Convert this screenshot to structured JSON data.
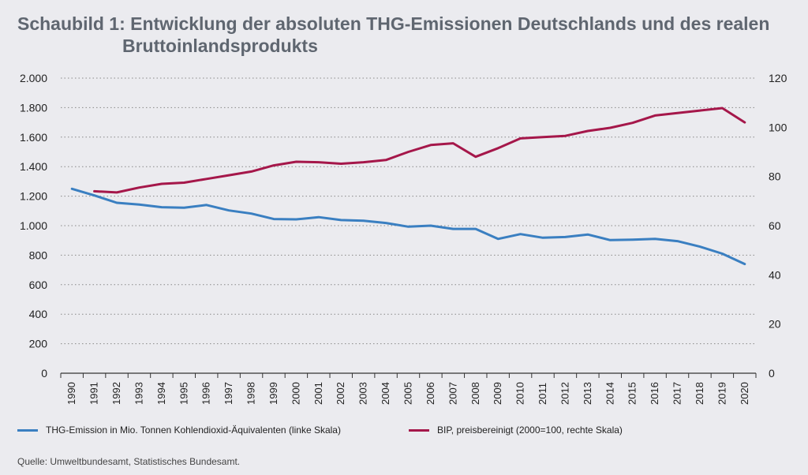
{
  "title_line1": "Schaubild 1: Entwicklung der absoluten THG-Emissionen Deutschlands und des realen",
  "title_line2": "Bruttoinlandsprodukts",
  "source": "Quelle: Umweltbundesamt, Statistisches Bundesamt.",
  "colors": {
    "emissions": "#3a7fc1",
    "gdp": "#a5174a",
    "grid": "#888888",
    "background": "#ebebef"
  },
  "chart_data": {
    "type": "line",
    "x": [
      1990,
      1991,
      1992,
      1993,
      1994,
      1995,
      1996,
      1997,
      1998,
      1999,
      2000,
      2001,
      2002,
      2003,
      2004,
      2005,
      2006,
      2007,
      2008,
      2009,
      2010,
      2011,
      2012,
      2013,
      2014,
      2015,
      2016,
      2017,
      2018,
      2019,
      2020
    ],
    "y_left": {
      "range": [
        0,
        2000
      ],
      "ticks": [
        "0",
        "200",
        "400",
        "600",
        "800",
        "1.000",
        "1.200",
        "1.400",
        "1.600",
        "1.800",
        "2.000"
      ],
      "tick_values": [
        0,
        200,
        400,
        600,
        800,
        1000,
        1200,
        1400,
        1600,
        1800,
        2000
      ]
    },
    "y_right": {
      "range": [
        0,
        120
      ],
      "ticks": [
        "0",
        "20",
        "40",
        "60",
        "80",
        "100",
        "120"
      ],
      "tick_values": [
        0,
        20,
        40,
        60,
        80,
        100,
        120
      ]
    },
    "grid": true,
    "legend_position": "bottom",
    "series": [
      {
        "name": "THG-Emission in Mio. Tonnen Kohlendioxid-Äquivalenten (linke Skala)",
        "axis": "left",
        "color": "#3a7fc1",
        "values": [
          1250,
          1205,
          1155,
          1143,
          1125,
          1122,
          1140,
          1103,
          1082,
          1045,
          1043,
          1058,
          1038,
          1033,
          1018,
          993,
          1000,
          978,
          978,
          910,
          943,
          918,
          923,
          940,
          902,
          905,
          910,
          895,
          858,
          810,
          740
        ]
      },
      {
        "name": "BIP, preisbereinigt (2000=100, rechte Skala)",
        "axis": "right",
        "color": "#a5174a",
        "values": [
          null,
          74,
          73.5,
          75.5,
          77,
          77.5,
          79,
          80.5,
          82,
          84.5,
          86,
          85.8,
          85.2,
          85.8,
          86.7,
          90,
          92.8,
          93.5,
          88,
          91.5,
          95.5,
          96,
          96.5,
          98.5,
          99.8,
          101.8,
          104.8,
          105.8,
          106.8,
          107.8,
          102
        ]
      }
    ]
  }
}
